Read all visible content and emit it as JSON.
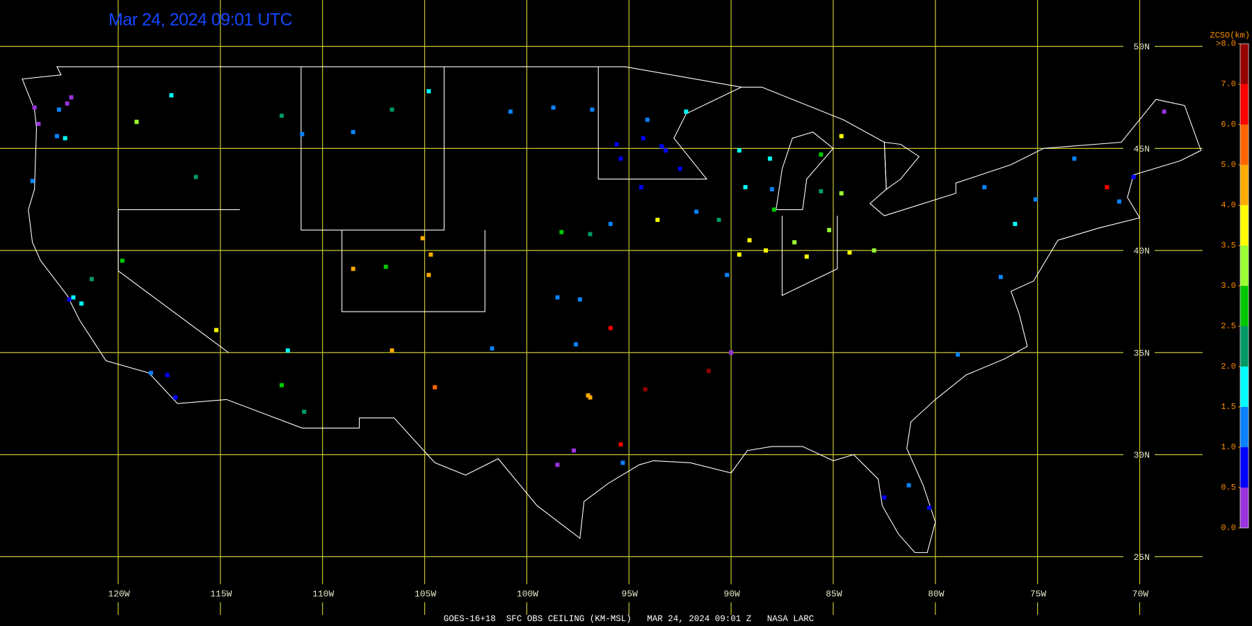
{
  "title": "Mar 24, 2024 09:01 UTC",
  "footer": "GOES-16+18  SFC OBS CEILING (KM-MSL)   MAR 24, 2024 09:01 Z   NASA LARC",
  "lat_lines": [
    {
      "value": 50,
      "label": "50N"
    },
    {
      "value": 45,
      "label": "45N"
    },
    {
      "value": 40,
      "label": "40N"
    },
    {
      "value": 35,
      "label": "35N"
    },
    {
      "value": 30,
      "label": "30N"
    },
    {
      "value": 25,
      "label": "25N"
    }
  ],
  "lon_lines": [
    {
      "value": -120,
      "label": "120W"
    },
    {
      "value": -115,
      "label": "115W"
    },
    {
      "value": -110,
      "label": "110W"
    },
    {
      "value": -105,
      "label": "105W"
    },
    {
      "value": -100,
      "label": "100W"
    },
    {
      "value": -95,
      "label": "95W"
    },
    {
      "value": -90,
      "label": "90W"
    },
    {
      "value": -85,
      "label": "85W"
    },
    {
      "value": -80,
      "label": "80W"
    },
    {
      "value": -75,
      "label": "75W"
    },
    {
      "value": -70,
      "label": "70W"
    }
  ],
  "colorbar": {
    "title": "ZCSO(km)",
    "ticks": [
      {
        "value": 0,
        "label": "0.0"
      },
      {
        "value": 0.5,
        "label": "0.5"
      },
      {
        "value": 1,
        "label": "1.0"
      },
      {
        "value": 1.5,
        "label": "1.5"
      },
      {
        "value": 2,
        "label": "2.0"
      },
      {
        "value": 2.5,
        "label": "2.5"
      },
      {
        "value": 3,
        "label": "3.0"
      },
      {
        "value": 3.5,
        "label": "3.5"
      },
      {
        "value": 4,
        "label": "4.0"
      },
      {
        "value": 5,
        "label": "5.0"
      },
      {
        "value": 6,
        "label": "6.0"
      },
      {
        "value": 7,
        "label": "7.0"
      },
      {
        "value": 8,
        "label": ">8.0"
      }
    ],
    "colors": [
      "#9933dd",
      "#0000ff",
      "#0a82ff",
      "#00ffff",
      "#009966",
      "#00c800",
      "#99ff33",
      "#ffff00",
      "#ffaa00",
      "#ff6400",
      "#ff0000",
      "#960000"
    ]
  },
  "stations": {
    "lon": [
      -124.1,
      -123.9,
      -122.3,
      -122.5,
      -122.9,
      -123,
      -122.6,
      -124.2,
      -117.4,
      -119.1,
      -116.2,
      -112,
      -111,
      -108.5,
      -106.6,
      -104.8,
      -100.8,
      -98.7,
      -122.2,
      -121.8,
      -121.3,
      -122.4,
      -119.8,
      -118.4,
      -117.2,
      -117.6,
      -112,
      -110.9,
      -115.2,
      -111.7,
      -106.6,
      -104.5,
      -104.7,
      -105.1,
      -104.8,
      -106.9,
      -108.5,
      -98.5,
      -97.4,
      -101.7,
      -97.6,
      -95.9,
      -96.9,
      -95.9,
      -98.3,
      -93.2,
      -94.3,
      -95.6,
      -96.8,
      -92.5,
      -94.1,
      -92.2,
      -93.4,
      -95.4,
      -93.6,
      -91.7,
      -90.6,
      -94.4,
      -89.3,
      -88,
      -89.6,
      -88.1,
      -85.6,
      -84.6,
      -84.6,
      -85.6,
      -87.9,
      -89.1,
      -88.3,
      -86.3,
      -85.2,
      -84.2,
      -83,
      -86.9,
      -90.2,
      -89.6,
      -97,
      -96.9,
      -97.7,
      -95.3,
      -98.5,
      -95.4,
      -94.2,
      -91.1,
      -90,
      -77.6,
      -75.1,
      -76.1,
      -73.2,
      -71,
      -70.3,
      -76.8,
      -78.9,
      -80.3,
      -81.3,
      -82.5,
      -71.6,
      -68.8
    ],
    "lat": [
      47,
      46.2,
      47.5,
      47.2,
      46.9,
      45.6,
      45.5,
      43.4,
      47.6,
      46.3,
      43.6,
      46.6,
      45.7,
      45.8,
      46.9,
      47.8,
      46.8,
      47,
      37.7,
      37.4,
      38.6,
      37.6,
      39.5,
      34,
      32.8,
      33.9,
      33.4,
      32.1,
      36.1,
      35.1,
      35.1,
      33.3,
      39.8,
      40.6,
      38.8,
      39.2,
      39.1,
      37.7,
      37.6,
      35.2,
      35.4,
      36.2,
      40.8,
      41.3,
      40.9,
      44.9,
      45.5,
      45.2,
      46.9,
      44,
      46.4,
      46.8,
      45.1,
      44.5,
      41.5,
      41.9,
      41.5,
      43.1,
      43.1,
      43,
      44.9,
      44.5,
      42.9,
      42.8,
      45.6,
      44.7,
      42,
      40.5,
      40,
      39.7,
      41,
      39.9,
      40,
      40.4,
      38.8,
      39.8,
      32.9,
      32.8,
      30.2,
      29.6,
      29.5,
      30.5,
      33.2,
      34.1,
      35,
      43.1,
      42.5,
      41.3,
      44.5,
      42.4,
      43.6,
      38.7,
      34.9,
      27.4,
      28.5,
      27.9,
      43.1,
      46.8
    ],
    "ceiling": [
      0.3,
      0.4,
      0.3,
      0.4,
      1.2,
      1.3,
      1.6,
      1.2,
      1.8,
      3.2,
      2.2,
      2.4,
      1.3,
      1.2,
      2.4,
      1.8,
      1.3,
      1.2,
      1.8,
      1.6,
      2,
      0.8,
      2.7,
      1.4,
      0.8,
      0.6,
      2.7,
      2.3,
      3.8,
      1.8,
      4.4,
      5.6,
      4.4,
      4.2,
      4.7,
      2.8,
      4.6,
      1.3,
      1.2,
      1.4,
      1.4,
      6.3,
      2.3,
      1.2,
      2.6,
      0.8,
      0.9,
      0.7,
      1.1,
      0.8,
      1.3,
      1.6,
      0.9,
      0.8,
      3.6,
      1.2,
      2.3,
      0.9,
      1.7,
      1.2,
      1.8,
      1.6,
      2.2,
      3.2,
      3.8,
      2.8,
      2.8,
      3.6,
      3.8,
      3.9,
      3.2,
      3.7,
      3.4,
      3.1,
      1.2,
      3.7,
      4.5,
      4.7,
      0.3,
      1.1,
      0.2,
      6.8,
      7.2,
      7.3,
      0.3,
      1.1,
      1.3,
      1.5,
      1,
      1,
      0.8,
      1.4,
      1.2,
      0.8,
      1,
      0.5,
      6.7,
      0.3
    ]
  }
}
